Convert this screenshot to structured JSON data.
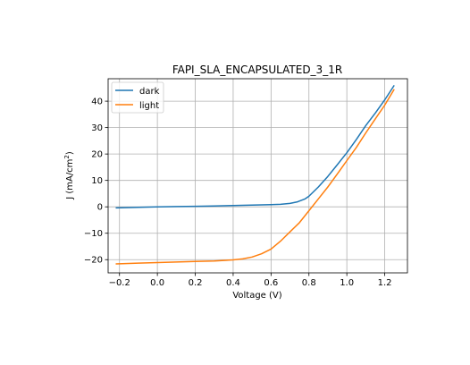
{
  "chart_data": {
    "type": "line",
    "title": "FAPI_SLA_ENCAPSULATED_3_1R",
    "xlabel": "Voltage (V)",
    "ylabel_main": "J (mA/cm",
    "ylabel_sup": "2",
    "ylabel_close": ")",
    "xlim": [
      -0.26,
      1.32
    ],
    "ylim": [
      -25,
      48.5
    ],
    "grid": true,
    "legend_position": "upper-left",
    "x_ticks": [
      {
        "value": -0.2,
        "label": "−0.2"
      },
      {
        "value": 0.0,
        "label": "0.0"
      },
      {
        "value": 0.2,
        "label": "0.2"
      },
      {
        "value": 0.4,
        "label": "0.4"
      },
      {
        "value": 0.6,
        "label": "0.6"
      },
      {
        "value": 0.8,
        "label": "0.8"
      },
      {
        "value": 1.0,
        "label": "1.0"
      },
      {
        "value": 1.2,
        "label": "1.2"
      }
    ],
    "y_ticks": [
      {
        "value": -20,
        "label": "−20"
      },
      {
        "value": -10,
        "label": "−10"
      },
      {
        "value": 0,
        "label": "0"
      },
      {
        "value": 10,
        "label": "10"
      },
      {
        "value": 20,
        "label": "20"
      },
      {
        "value": 30,
        "label": "30"
      },
      {
        "value": 40,
        "label": "40"
      }
    ],
    "series": [
      {
        "name": "dark",
        "color": "#1f77b4",
        "points": [
          [
            -0.22,
            -0.4
          ],
          [
            -0.1,
            -0.2
          ],
          [
            0.0,
            0.0
          ],
          [
            0.1,
            0.1
          ],
          [
            0.2,
            0.2
          ],
          [
            0.3,
            0.35
          ],
          [
            0.4,
            0.5
          ],
          [
            0.5,
            0.65
          ],
          [
            0.6,
            0.8
          ],
          [
            0.65,
            0.95
          ],
          [
            0.7,
            1.3
          ],
          [
            0.74,
            1.9
          ],
          [
            0.78,
            3.0
          ],
          [
            0.8,
            4.0
          ],
          [
            0.85,
            7.5
          ],
          [
            0.9,
            11.5
          ],
          [
            0.95,
            16.0
          ],
          [
            1.0,
            20.5
          ],
          [
            1.05,
            25.5
          ],
          [
            1.1,
            30.8
          ],
          [
            1.15,
            35.5
          ],
          [
            1.2,
            40.5
          ],
          [
            1.25,
            46.0
          ]
        ]
      },
      {
        "name": "light",
        "color": "#ff7f0e",
        "points": [
          [
            -0.22,
            -21.6
          ],
          [
            -0.1,
            -21.3
          ],
          [
            0.0,
            -21.1
          ],
          [
            0.1,
            -20.9
          ],
          [
            0.2,
            -20.7
          ],
          [
            0.3,
            -20.5
          ],
          [
            0.4,
            -20.1
          ],
          [
            0.45,
            -19.7
          ],
          [
            0.5,
            -19.0
          ],
          [
            0.55,
            -17.8
          ],
          [
            0.6,
            -16.0
          ],
          [
            0.65,
            -13.0
          ],
          [
            0.7,
            -9.5
          ],
          [
            0.75,
            -6.0
          ],
          [
            0.8,
            -1.5
          ],
          [
            0.85,
            3.0
          ],
          [
            0.9,
            7.5
          ],
          [
            0.95,
            12.5
          ],
          [
            1.0,
            17.5
          ],
          [
            1.05,
            22.5
          ],
          [
            1.1,
            28.0
          ],
          [
            1.15,
            33.3
          ],
          [
            1.2,
            38.5
          ],
          [
            1.25,
            44.5
          ]
        ]
      }
    ]
  }
}
